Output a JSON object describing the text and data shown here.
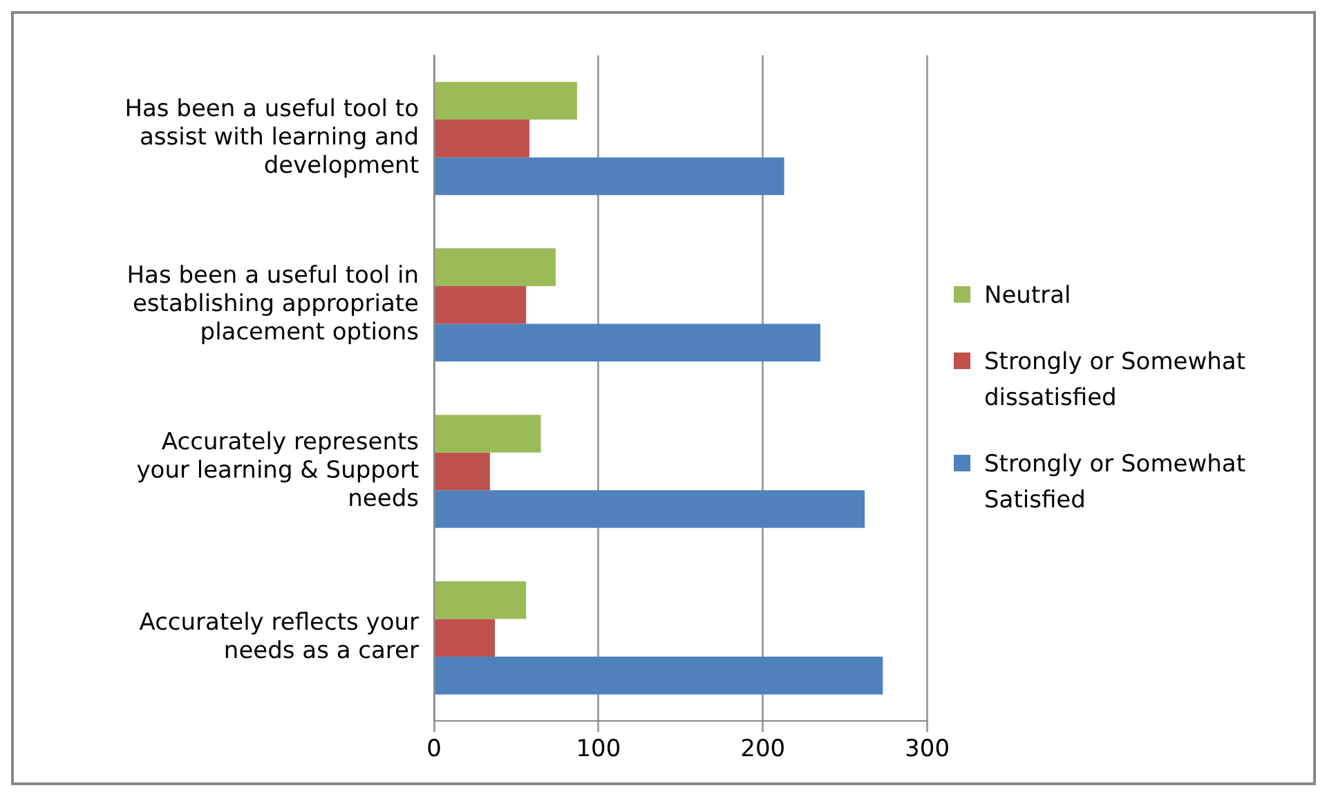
{
  "chart_data": {
    "type": "bar",
    "orientation": "horizontal",
    "categories": [
      "Has been a useful tool to assist with learning and development",
      "Has been a useful tool in establishing appropriate placement options",
      "Accurately represents your learning & Support needs",
      "Accurately reflects your needs as a carer"
    ],
    "series": [
      {
        "name": "Neutral",
        "color": "#9bbb59",
        "values": [
          87,
          74,
          65,
          56
        ]
      },
      {
        "name": "Strongly or Somewhat dissatisfied",
        "color": "#c0504d",
        "values": [
          58,
          56,
          34,
          37
        ]
      },
      {
        "name": "Strongly or Somewhat Satisfied",
        "color": "#4f81bd",
        "values": [
          213,
          235,
          262,
          273
        ]
      }
    ],
    "xlim": [
      0,
      300
    ],
    "xticks": [
      0,
      100,
      200,
      300
    ],
    "grid": "x",
    "legend": "right"
  }
}
